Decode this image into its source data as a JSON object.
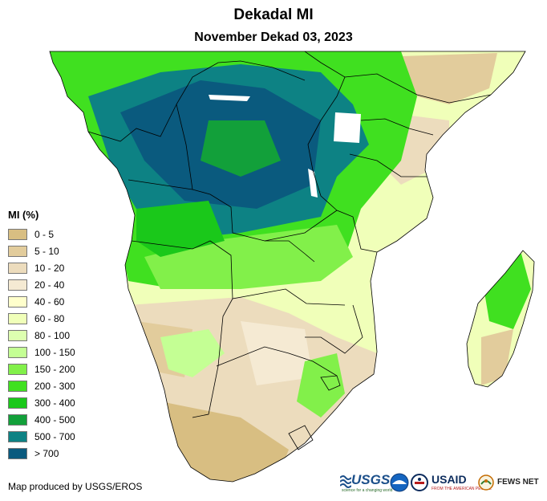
{
  "header": {
    "title": "Dekadal MI",
    "subtitle": "November Dekad 03, 2023"
  },
  "legend": {
    "title": "MI (%)",
    "items": [
      {
        "label": "0 - 5",
        "color": "#d8be82"
      },
      {
        "label": "5 - 10",
        "color": "#e2cc9c"
      },
      {
        "label": "10 - 20",
        "color": "#ecdcbd"
      },
      {
        "label": "20 - 40",
        "color": "#f5ead3"
      },
      {
        "label": "40 - 60",
        "color": "#ffffcc"
      },
      {
        "label": "60 - 80",
        "color": "#f0ffb9"
      },
      {
        "label": "80 - 100",
        "color": "#ddffb0"
      },
      {
        "label": "100 - 150",
        "color": "#c4ff94"
      },
      {
        "label": "150 - 200",
        "color": "#82f04a"
      },
      {
        "label": "200 - 300",
        "color": "#40e020"
      },
      {
        "label": "300 - 400",
        "color": "#1ac81a"
      },
      {
        "label": "400 - 500",
        "color": "#12a03a"
      },
      {
        "label": "500 - 700",
        "color": "#0d8284"
      },
      {
        "label": "> 700",
        "color": "#0a5a7e"
      }
    ]
  },
  "footer": {
    "credit": "Map produced by USGS/EROS"
  },
  "logos": {
    "usgs": "USGS",
    "usgs_tagline": "science for a changing world",
    "noaa": "NOAA",
    "usaid": "USAID",
    "usaid_tagline": "FROM THE AMERICAN PEOPLE",
    "fews": "FEWS NET"
  }
}
